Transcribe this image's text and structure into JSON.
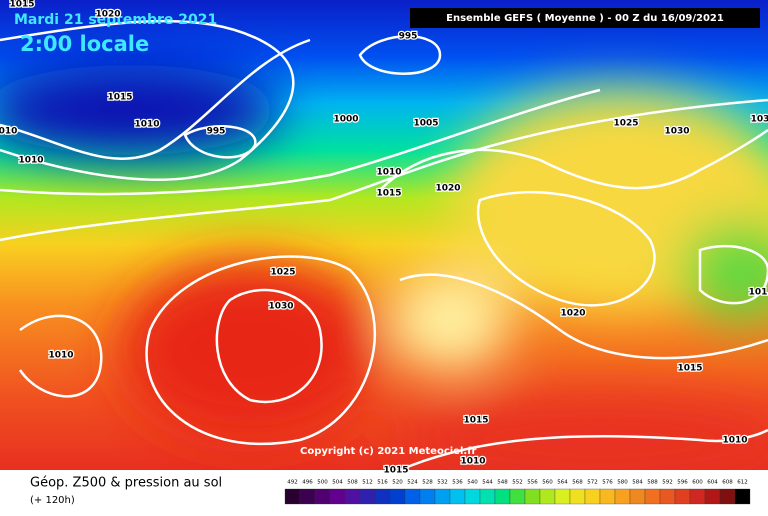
{
  "header": {
    "date": "Mardi 21 septembre 2021",
    "time": "2:00 locale",
    "run": "Ensemble GEFS  ( Moyenne )  -  00 Z du 16/09/2021"
  },
  "isobar_labels": [
    "1015",
    "1020",
    "995",
    "1015",
    "1010",
    "995",
    "1000",
    "1005",
    "1025",
    "1030",
    "103",
    "010",
    "1010",
    "1010",
    "1015",
    "1020",
    "1025",
    "1030",
    "1010",
    "1020",
    "1015",
    "1015",
    "1015",
    "1010",
    "1010",
    "101"
  ],
  "copyright": "Copyright (c) 2021 Meteociel.fr",
  "footer": {
    "title": "Géop. Z500 & pression au sol",
    "lead": "(+ 120h)"
  },
  "scale_labels": [
    "492",
    "496",
    "500",
    "504",
    "508",
    "512",
    "516",
    "520",
    "524",
    "528",
    "532",
    "536",
    "540",
    "544",
    "548",
    "552",
    "556",
    "560",
    "564",
    "568",
    "572",
    "576",
    "580",
    "584",
    "588",
    "592",
    "596",
    "600",
    "604",
    "608",
    "612"
  ]
}
